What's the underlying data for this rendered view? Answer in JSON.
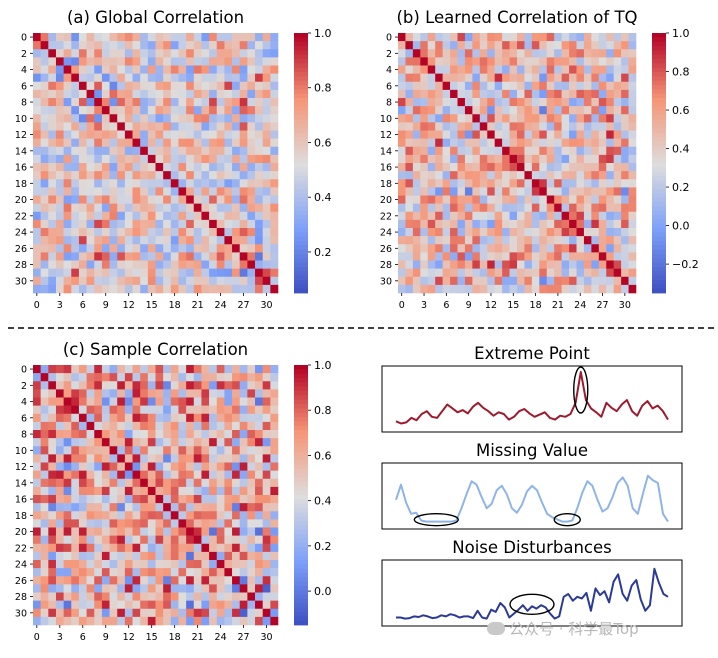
{
  "chart_data": [
    {
      "type": "heatmap",
      "title": "(a) Global Correlation",
      "n": 32,
      "ytick_labels": [
        "0",
        "2",
        "4",
        "6",
        "8",
        "10",
        "12",
        "14",
        "16",
        "18",
        "20",
        "22",
        "24",
        "26",
        "28",
        "30"
      ],
      "xtick_labels": [
        "0",
        "3",
        "6",
        "9",
        "12",
        "15",
        "18",
        "21",
        "24",
        "27",
        "30"
      ],
      "colorbar": {
        "vmin": 0.05,
        "vmax": 1.0,
        "tick_labels": [
          "1.0",
          "0.8",
          "0.6",
          "0.4",
          "0.2"
        ],
        "tick_values": [
          1.0,
          0.8,
          0.6,
          0.4,
          0.2
        ]
      },
      "colormap": "coolwarm",
      "diagonal_value": 1.0,
      "seed": 11,
      "mean": 0.55,
      "spread": 0.28,
      "band_strength": 0.12
    },
    {
      "type": "heatmap",
      "title": "(b) Learned Correlation of TQ",
      "n": 32,
      "ytick_labels": [
        "0",
        "2",
        "4",
        "6",
        "8",
        "10",
        "12",
        "14",
        "16",
        "18",
        "20",
        "22",
        "24",
        "26",
        "28",
        "30"
      ],
      "xtick_labels": [
        "0",
        "3",
        "6",
        "9",
        "12",
        "15",
        "18",
        "21",
        "24",
        "27",
        "30"
      ],
      "colorbar": {
        "vmin": -0.35,
        "vmax": 1.0,
        "tick_labels": [
          "1.0",
          "0.8",
          "0.6",
          "0.4",
          "0.2",
          "0.0",
          "−0.2"
        ],
        "tick_values": [
          1.0,
          0.8,
          0.6,
          0.4,
          0.2,
          0.0,
          -0.2
        ]
      },
      "colormap": "coolwarm",
      "diagonal_value": 1.0,
      "seed": 23,
      "mean": 0.45,
      "spread": 0.42,
      "band_strength": 0.18
    },
    {
      "type": "heatmap",
      "title": "(c) Sample Correlation",
      "n": 32,
      "ytick_labels": [
        "0",
        "2",
        "4",
        "6",
        "8",
        "10",
        "12",
        "14",
        "16",
        "18",
        "20",
        "22",
        "24",
        "26",
        "28",
        "30"
      ],
      "xtick_labels": [
        "0",
        "3",
        "6",
        "9",
        "12",
        "15",
        "18",
        "21",
        "24",
        "27",
        "30"
      ],
      "colorbar": {
        "vmin": -0.15,
        "vmax": 1.0,
        "tick_labels": [
          "1.0",
          "0.8",
          "0.6",
          "0.4",
          "0.2",
          "0.0"
        ],
        "tick_values": [
          1.0,
          0.8,
          0.6,
          0.4,
          0.2,
          0.0
        ]
      },
      "colormap": "coolwarm",
      "diagonal_value": 1.0,
      "seed": 37,
      "mean": 0.55,
      "spread": 0.4,
      "band_strength": 0.2
    },
    {
      "type": "line",
      "title": "Extreme Point",
      "color": "#9e1a2e",
      "values": [
        0.12,
        0.08,
        0.1,
        0.18,
        0.14,
        0.25,
        0.3,
        0.2,
        0.18,
        0.3,
        0.42,
        0.35,
        0.28,
        0.32,
        0.26,
        0.38,
        0.45,
        0.36,
        0.3,
        0.22,
        0.28,
        0.25,
        0.15,
        0.2,
        0.3,
        0.34,
        0.26,
        0.2,
        0.24,
        0.28,
        0.18,
        0.15,
        0.22,
        0.2,
        0.25,
        0.45,
        1.0,
        0.5,
        0.35,
        0.28,
        0.2,
        0.45,
        0.36,
        0.3,
        0.42,
        0.5,
        0.3,
        0.22,
        0.4,
        0.48,
        0.35,
        0.4,
        0.3,
        0.15
      ],
      "annotation": {
        "shape": "ellipse",
        "at_index": 36
      }
    },
    {
      "type": "line",
      "title": "Missing Value",
      "color": "#8fb4e8",
      "values": [
        0.45,
        0.72,
        0.4,
        0.2,
        0.22,
        0.08,
        0.06,
        0.06,
        0.06,
        0.06,
        0.06,
        0.06,
        0.08,
        0.3,
        0.55,
        0.78,
        0.72,
        0.5,
        0.3,
        0.38,
        0.62,
        0.7,
        0.55,
        0.3,
        0.22,
        0.36,
        0.6,
        0.7,
        0.62,
        0.4,
        0.2,
        0.14,
        0.1,
        0.06,
        0.06,
        0.08,
        0.3,
        0.58,
        0.78,
        0.7,
        0.45,
        0.24,
        0.3,
        0.5,
        0.75,
        0.85,
        0.7,
        0.3,
        0.2,
        0.55,
        0.88,
        0.8,
        0.75,
        0.2,
        0.06
      ],
      "annotations": [
        {
          "shape": "ellipse",
          "at_index": 8
        },
        {
          "shape": "ellipse",
          "at_index": 34
        }
      ]
    },
    {
      "type": "line",
      "title": "Noise Disturbances",
      "color": "#2b3a96",
      "values": [
        0.08,
        0.08,
        0.06,
        0.07,
        0.1,
        0.09,
        0.12,
        0.1,
        0.07,
        0.08,
        0.12,
        0.1,
        0.14,
        0.12,
        0.08,
        0.1,
        0.1,
        0.07,
        0.2,
        0.08,
        0.06,
        0.22,
        0.18,
        0.34,
        0.26,
        0.08,
        0.15,
        0.22,
        0.3,
        0.2,
        0.28,
        0.24,
        0.3,
        0.26,
        0.15,
        0.06,
        0.1,
        0.45,
        0.5,
        0.38,
        0.45,
        0.42,
        0.52,
        0.2,
        0.6,
        0.48,
        0.55,
        0.35,
        0.72,
        0.85,
        0.5,
        0.38,
        0.65,
        0.75,
        0.4,
        0.2,
        0.3,
        0.95,
        0.7,
        0.5,
        0.45
      ],
      "annotation": {
        "shape": "ellipse",
        "at_index": 30
      }
    }
  ],
  "watermark": "公众号 · 科学最Top"
}
